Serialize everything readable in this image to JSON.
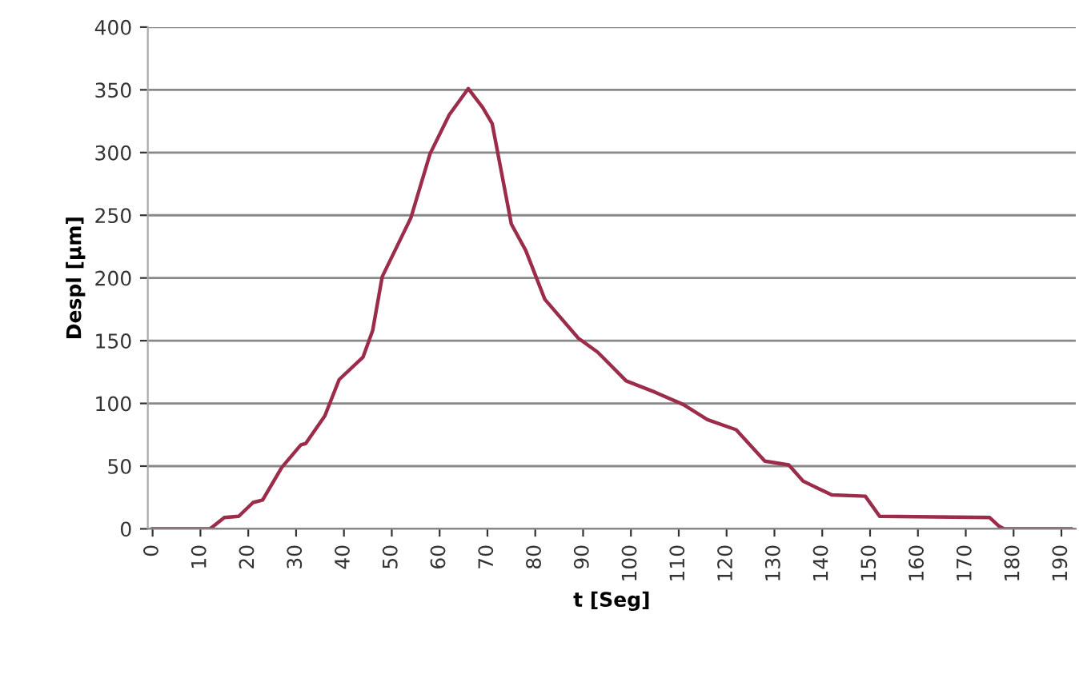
{
  "chart_data": {
    "type": "line",
    "xlabel": "t [Seg]",
    "ylabel": "Despl [µm]",
    "series": [
      {
        "color": "#9b2c4a",
        "x": [
          0,
          12,
          13,
          15,
          18,
          21,
          23,
          27,
          31,
          32,
          36,
          39,
          44,
          46,
          48,
          54,
          58,
          62,
          66,
          69,
          71,
          75,
          78,
          82,
          89,
          93,
          99,
          105,
          111,
          116,
          122,
          128,
          133,
          136,
          142,
          149,
          152,
          175,
          177,
          178,
          192
        ],
        "values": [
          0,
          0,
          3,
          9,
          10,
          21,
          23,
          49,
          67,
          68,
          90,
          119,
          137,
          158,
          201,
          248,
          299,
          330,
          351,
          336,
          323,
          243,
          222,
          183,
          152,
          141,
          118,
          109,
          99,
          87,
          79,
          54,
          51,
          38,
          27,
          26,
          10,
          9,
          2,
          0,
          0
        ]
      }
    ],
    "xlim": [
      -1,
      193
    ],
    "xticks": [
      0,
      10,
      20,
      30,
      40,
      50,
      60,
      70,
      80,
      90,
      100,
      110,
      120,
      130,
      140,
      150,
      160,
      170,
      180,
      190
    ],
    "ylim": [
      0,
      400
    ],
    "yticks": [
      0,
      50,
      100,
      150,
      200,
      250,
      300,
      350,
      400
    ],
    "grid": "y",
    "legend": false,
    "marker": "none",
    "line_style": "solid"
  }
}
